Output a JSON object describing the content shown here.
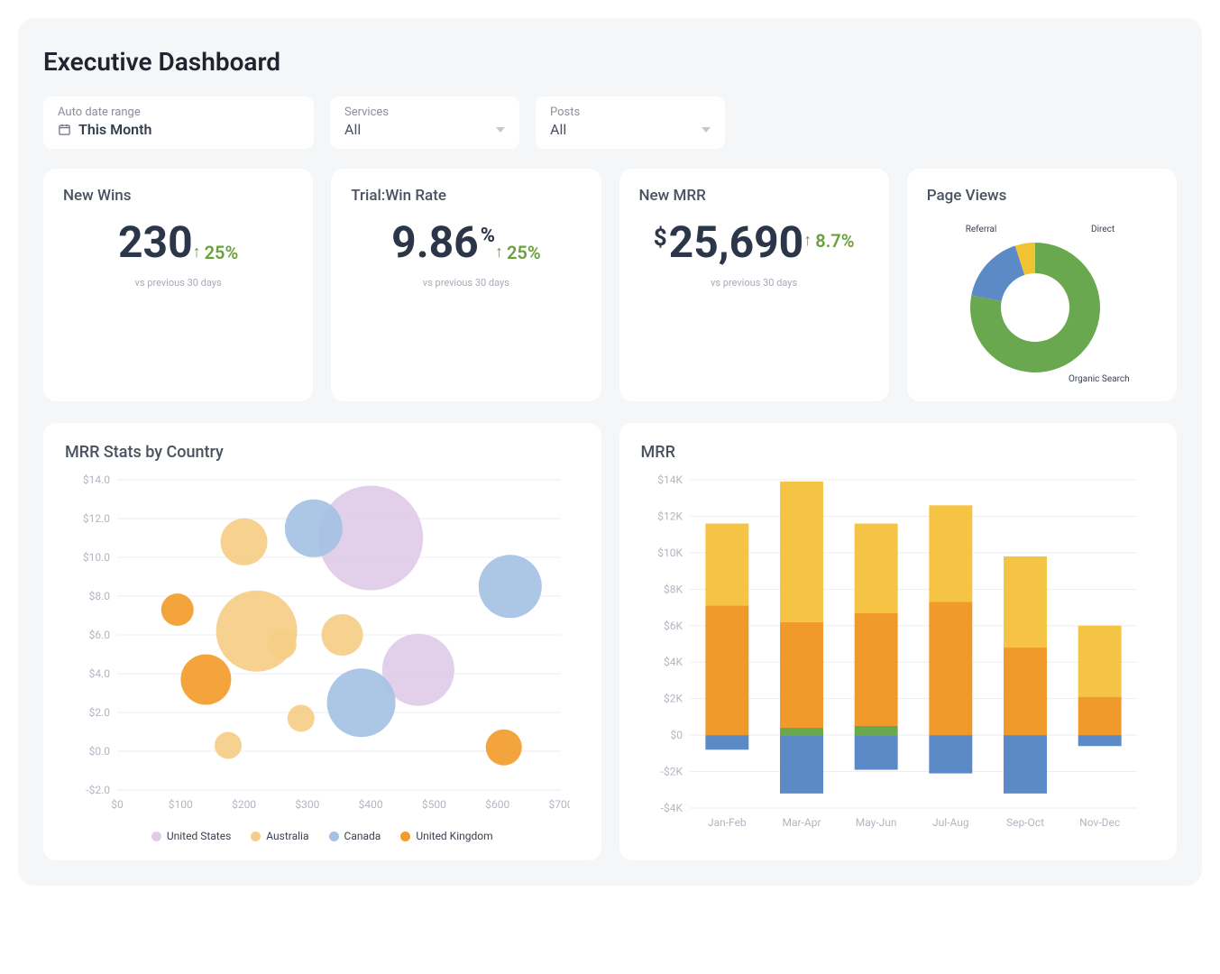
{
  "title": "Executive Dashboard",
  "filters": {
    "date": {
      "label": "Auto date range",
      "value": "This Month"
    },
    "services": {
      "label": "Services",
      "value": "All"
    },
    "posts": {
      "label": "Posts",
      "value": "All"
    }
  },
  "kpis": [
    {
      "title": "New Wins",
      "prefix": "",
      "value": "230",
      "suffix": "",
      "delta": "25%",
      "delta_color": "#6aa13a",
      "sub": "vs previous 30 days"
    },
    {
      "title": "Trial:Win Rate",
      "prefix": "",
      "value": "9.86",
      "suffix": "%",
      "delta": "25%",
      "delta_color": "#6aa13a",
      "sub": "vs previous 30 days"
    },
    {
      "title": "New MRR",
      "prefix": "$",
      "value": "25,690",
      "suffix": "",
      "delta": "8.7%",
      "delta_color": "#6aa13a",
      "sub": "vs previous 30 days"
    }
  ],
  "donut": {
    "title": "Page Views",
    "slices": [
      {
        "label": "Organic Search",
        "value": 78,
        "color": "#6aa84f"
      },
      {
        "label": "Direct",
        "value": 17,
        "color": "#5b8ac7"
      },
      {
        "label": "Referral",
        "value": 5,
        "color": "#f1c232"
      }
    ],
    "label_fontsize": 10,
    "label_color": "#3a4150"
  },
  "bubble": {
    "title": "MRR Stats by Country",
    "xlim": [
      0,
      700
    ],
    "xtick_step": 100,
    "xprefix": "$",
    "ylim": [
      -2,
      14
    ],
    "ytick_step": 2,
    "yprefix": "$",
    "ysuffix": ".0",
    "grid_color": "#eceef2",
    "axis_color": "#b1b6c2",
    "series": [
      {
        "label": "United States",
        "color": "#e0cbe8"
      },
      {
        "label": "Australia",
        "color": "#f5cd86"
      },
      {
        "label": "Canada",
        "color": "#a5c1e3"
      },
      {
        "label": "United Kingdom",
        "color": "#f39c2d"
      }
    ],
    "points": [
      {
        "series": 0,
        "x": 400,
        "y": 11.0,
        "r": 58
      },
      {
        "series": 0,
        "x": 475,
        "y": 4.2,
        "r": 40
      },
      {
        "series": 2,
        "x": 310,
        "y": 11.5,
        "r": 32
      },
      {
        "series": 2,
        "x": 620,
        "y": 8.5,
        "r": 35
      },
      {
        "series": 2,
        "x": 385,
        "y": 2.5,
        "r": 38
      },
      {
        "series": 1,
        "x": 200,
        "y": 10.8,
        "r": 26
      },
      {
        "series": 1,
        "x": 220,
        "y": 6.2,
        "r": 45
      },
      {
        "series": 1,
        "x": 175,
        "y": 0.3,
        "r": 15
      },
      {
        "series": 1,
        "x": 260,
        "y": 5.5,
        "r": 16
      },
      {
        "series": 1,
        "x": 355,
        "y": 6.0,
        "r": 23
      },
      {
        "series": 1,
        "x": 290,
        "y": 1.7,
        "r": 15
      },
      {
        "series": 3,
        "x": 95,
        "y": 7.3,
        "r": 18
      },
      {
        "series": 3,
        "x": 140,
        "y": 3.7,
        "r": 28
      },
      {
        "series": 3,
        "x": 610,
        "y": 0.2,
        "r": 20
      }
    ]
  },
  "bar": {
    "title": "MRR",
    "xlim_categories": [
      "Jan-Feb",
      "Mar-Apr",
      "May-Jun",
      "Jul-Aug",
      "Sep-Oct",
      "Nov-Dec"
    ],
    "ylim": [
      -4,
      14
    ],
    "ytick_step": 2,
    "yprefix": "$",
    "ysuffix": "K",
    "grid_color": "#eceef2",
    "axis_color": "#b1b6c2",
    "series_colors": {
      "top": "#f6c444",
      "mid": "#f19a2c",
      "green": "#6aa84f",
      "bottom": "#5b8ac7"
    },
    "bar_width": 0.58,
    "data": [
      {
        "top": 4.5,
        "mid": 7.1,
        "green": 0.0,
        "bottom": -0.8
      },
      {
        "top": 7.7,
        "mid": 5.8,
        "green": 0.4,
        "bottom": -3.2
      },
      {
        "top": 4.9,
        "mid": 6.2,
        "green": 0.5,
        "bottom": -1.9
      },
      {
        "top": 5.3,
        "mid": 7.3,
        "green": 0.0,
        "bottom": -2.1
      },
      {
        "top": 5.0,
        "mid": 4.8,
        "green": 0.0,
        "bottom": -3.2
      },
      {
        "top": 3.9,
        "mid": 2.1,
        "green": 0.0,
        "bottom": -0.6
      }
    ]
  }
}
